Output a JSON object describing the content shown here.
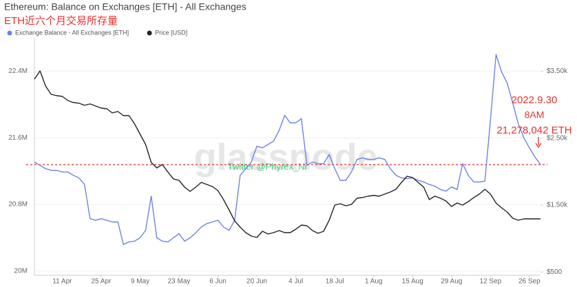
{
  "chart_data": {
    "type": "line",
    "title": "Ethereum: Balance on Exchanges [ETH] - All Exchanges",
    "subtitle": "ETH近六个月交易所存量",
    "categories": [
      null,
      null,
      null,
      null,
      null,
      "11 Apr",
      null,
      null,
      null,
      null,
      null,
      null,
      "25 Apr",
      null,
      null,
      null,
      null,
      null,
      null,
      "9 May",
      null,
      null,
      null,
      null,
      null,
      null,
      "23 May",
      null,
      null,
      null,
      null,
      null,
      null,
      "6 Jun",
      null,
      null,
      null,
      null,
      null,
      null,
      "20 Jun",
      null,
      null,
      null,
      null,
      null,
      null,
      "4 Jul",
      null,
      null,
      null,
      null,
      null,
      null,
      "18 Jul",
      null,
      null,
      null,
      null,
      null,
      null,
      "1 Aug",
      null,
      null,
      null,
      null,
      null,
      null,
      "15 Aug",
      null,
      null,
      null,
      null,
      null,
      null,
      "29 Aug",
      null,
      null,
      null,
      null,
      null,
      null,
      "12 Sep",
      null,
      null,
      null,
      null,
      null,
      null,
      "26 Sep",
      null,
      null
    ],
    "series": [
      {
        "name": "Exchange Balance - All Exchanges [ETH]",
        "color": "#6b83e6",
        "values": [
          21310000,
          21270000,
          21230000,
          21210000,
          21210000,
          21190000,
          21190000,
          21150000,
          21120000,
          21040000,
          20630000,
          20610000,
          20630000,
          20610000,
          20590000,
          20590000,
          20320000,
          20350000,
          20360000,
          20400000,
          20490000,
          20900000,
          20400000,
          20360000,
          20350000,
          20400000,
          20450000,
          20360000,
          20400000,
          20460000,
          20530000,
          20570000,
          20590000,
          20610000,
          20530000,
          20490000,
          20610000,
          21150000,
          21230000,
          21310000,
          21500000,
          21480000,
          21520000,
          21560000,
          21690000,
          21870000,
          21780000,
          21780000,
          21830000,
          21270000,
          21310000,
          21290000,
          21290000,
          21400000,
          21230000,
          21090000,
          21090000,
          21190000,
          21340000,
          21360000,
          21340000,
          21340000,
          21360000,
          21340000,
          21230000,
          21150000,
          21120000,
          21110000,
          21120000,
          21090000,
          21070000,
          21040000,
          21020000,
          20980000,
          20960000,
          21010000,
          20980000,
          21290000,
          21150000,
          21070000,
          21070000,
          21080000,
          21810000,
          22600000,
          22390000,
          22260000,
          22020000,
          21770000,
          21600000,
          21480000,
          21370000,
          21278042
        ]
      },
      {
        "name": "Price [USD]",
        "color": "#222222",
        "axis": "y2",
        "values": [
          3383,
          3506,
          3280,
          3156,
          3136,
          3125,
          3064,
          3033,
          3023,
          2992,
          3012,
          2981,
          2950,
          2940,
          2878,
          2899,
          2837,
          2837,
          2714,
          2559,
          2405,
          2138,
          2055,
          2107,
          1994,
          1891,
          1870,
          1767,
          1705,
          1767,
          1839,
          1808,
          1777,
          1716,
          1582,
          1428,
          1263,
          1170,
          1088,
          1037,
          1016,
          1109,
          1067,
          1088,
          1119,
          1088,
          1088,
          1139,
          1201,
          1191,
          1119,
          1078,
          1109,
          1273,
          1500,
          1520,
          1489,
          1510,
          1602,
          1613,
          1633,
          1644,
          1633,
          1664,
          1695,
          1736,
          1839,
          1932,
          1911,
          1839,
          1767,
          1582,
          1633,
          1602,
          1561,
          1479,
          1530,
          1500,
          1551,
          1613,
          1664,
          1736,
          1664,
          1530,
          1458,
          1397,
          1304,
          1273,
          1294,
          1294,
          1294,
          1294
        ]
      }
    ],
    "ylim": [
      19950000,
      22800000
    ],
    "yticks": [
      {
        "value": 20000000,
        "label": "20M"
      },
      {
        "value": 20800000,
        "label": "20.8M"
      },
      {
        "value": 21600000,
        "label": "21.6M"
      },
      {
        "value": 22400000,
        "label": "22.4M"
      }
    ],
    "y2lim": [
      450,
      4000
    ],
    "y2ticks": [
      {
        "value": 500,
        "label": "$500"
      },
      {
        "value": 1500,
        "label": "$1.50k"
      },
      {
        "value": 2500,
        "label": "$2.50k"
      },
      {
        "value": 3500,
        "label": "$3.50k"
      }
    ],
    "grid": true,
    "annotations": {
      "date": "2022.9.30",
      "time": "8AM",
      "reference": {
        "value": 21278042,
        "label": "21,278,042 ETH"
      },
      "reference_color": "#e8312f"
    },
    "watermark": "glassnode",
    "credit": "Twitter @Phyrex_Ni"
  }
}
